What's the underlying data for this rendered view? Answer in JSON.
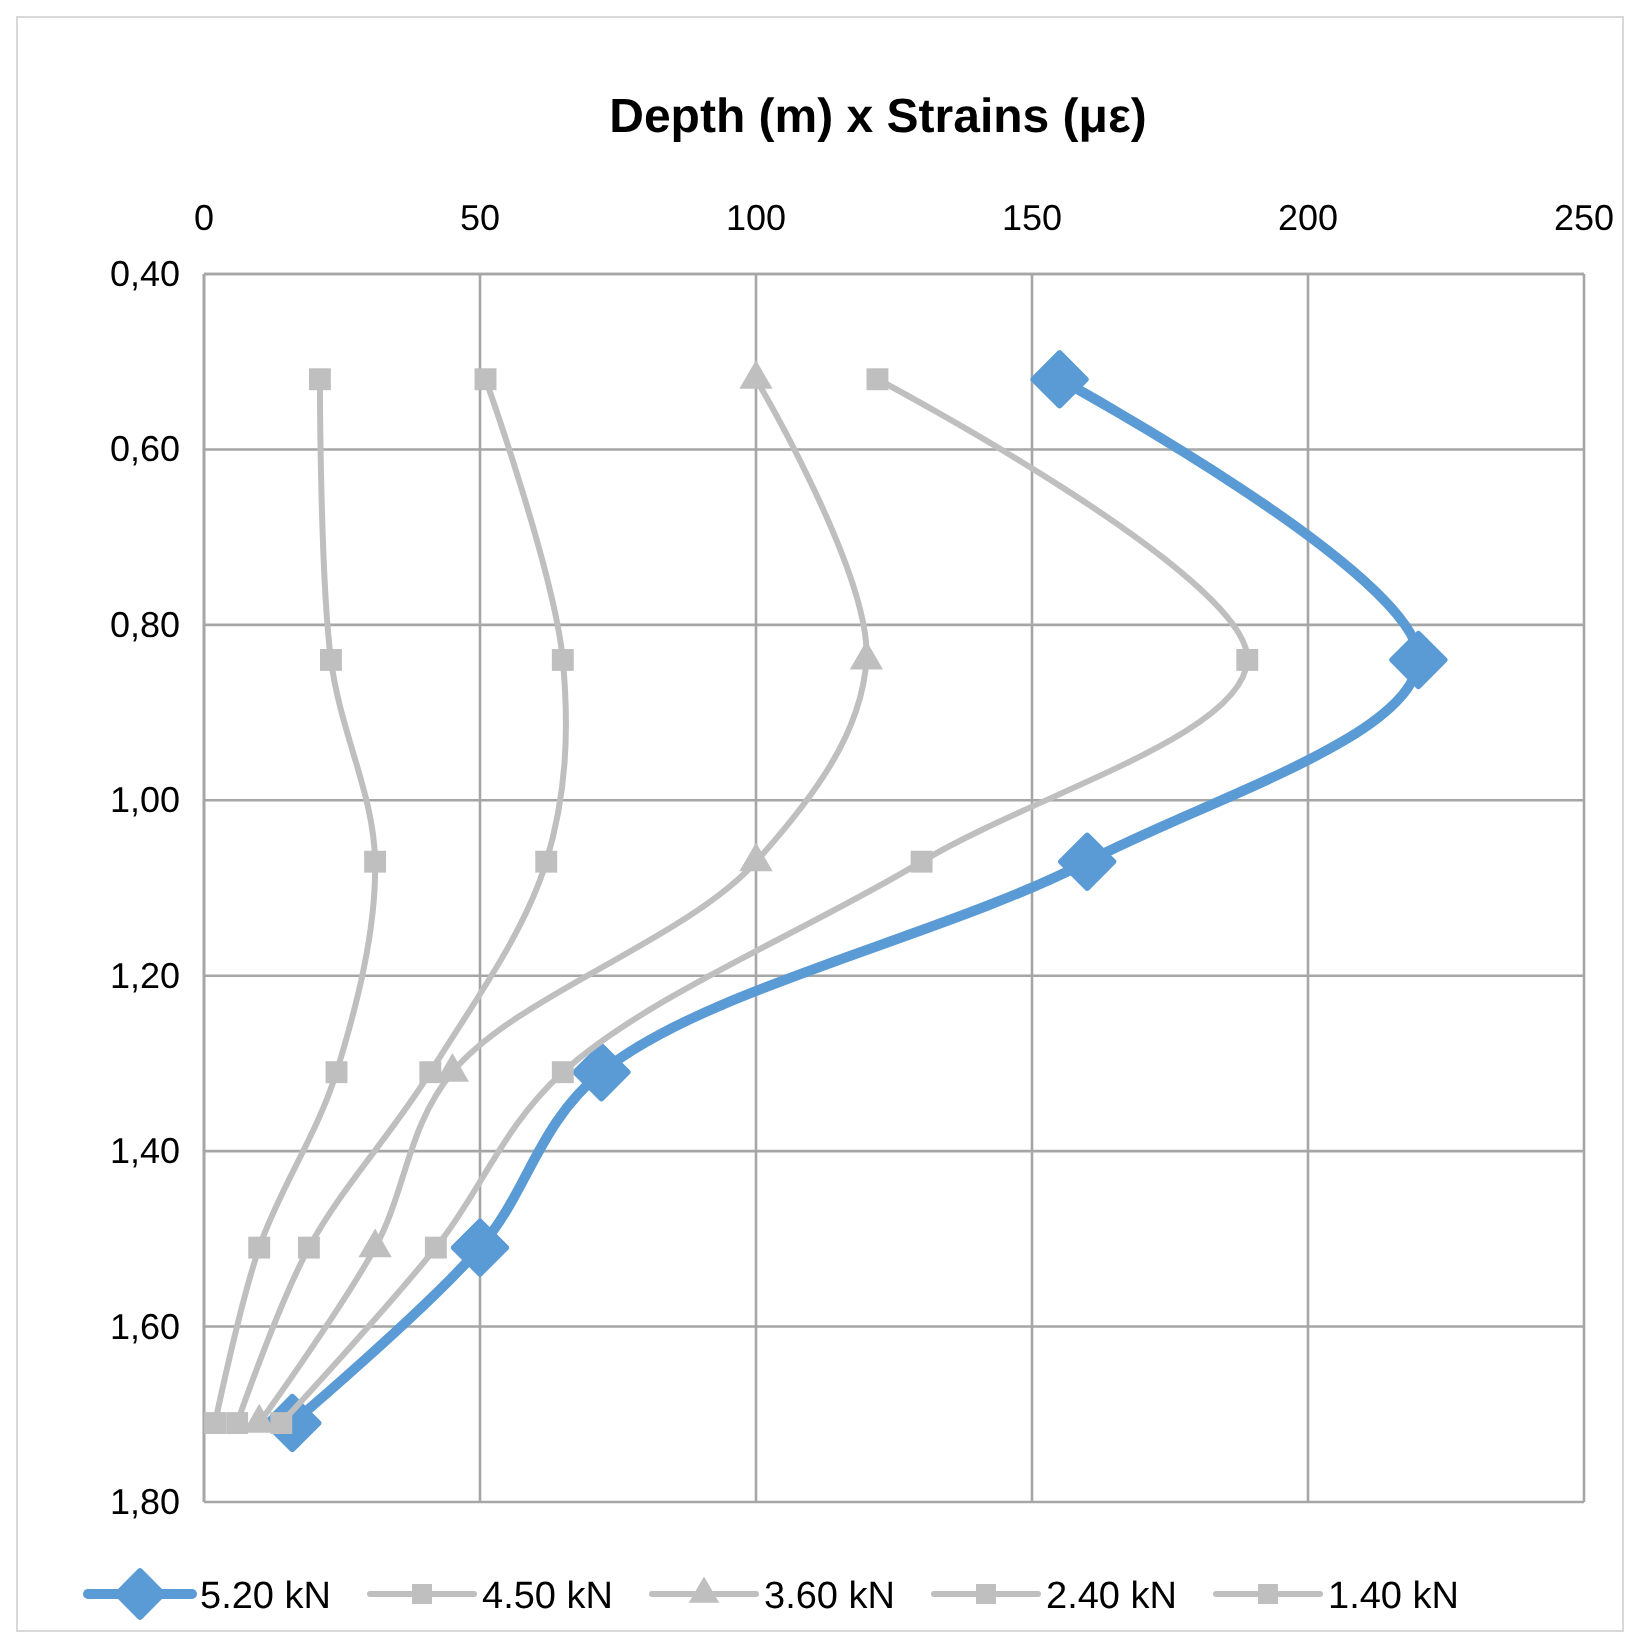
{
  "chart_data": {
    "type": "line",
    "title": "Depth (m) x Strains (με)",
    "xlim": [
      0,
      250
    ],
    "xticks": [
      0,
      50,
      100,
      150,
      200,
      250
    ],
    "ylim": [
      1.8,
      0.4
    ],
    "yticks": [
      {
        "value": 0.4,
        "label": "0,40"
      },
      {
        "value": 0.6,
        "label": "0,60"
      },
      {
        "value": 0.8,
        "label": "0,80"
      },
      {
        "value": 1.0,
        "label": "1,00"
      },
      {
        "value": 1.2,
        "label": "1,20"
      },
      {
        "value": 1.4,
        "label": "1,40"
      },
      {
        "value": 1.6,
        "label": "1,60"
      },
      {
        "value": 1.8,
        "label": "1,80"
      }
    ],
    "grid": true,
    "legend": "bottom",
    "line_style": "solid",
    "series": [
      {
        "name": "5.20 kN",
        "color": "#5b9bd5",
        "marker": "diamond",
        "x": [
          155,
          220,
          160,
          72,
          50,
          16
        ],
        "values": [
          0.52,
          0.84,
          1.07,
          1.31,
          1.51,
          1.71
        ]
      },
      {
        "name": "4.50 kN",
        "color": "#bfbfbf",
        "marker": "square",
        "x": [
          122,
          189,
          130,
          65,
          42,
          14
        ],
        "values": [
          0.52,
          0.84,
          1.07,
          1.31,
          1.51,
          1.71
        ]
      },
      {
        "name": "3.60 kN",
        "color": "#bfbfbf",
        "marker": "triangle",
        "x": [
          100,
          120,
          100,
          45,
          31,
          10
        ],
        "values": [
          0.52,
          0.84,
          1.07,
          1.31,
          1.51,
          1.71
        ]
      },
      {
        "name": "2.40 kN",
        "color": "#bfbfbf",
        "marker": "square",
        "x": [
          51,
          65,
          62,
          41,
          19,
          6
        ],
        "values": [
          0.52,
          0.84,
          1.07,
          1.31,
          1.51,
          1.71
        ]
      },
      {
        "name": "1.40 kN",
        "color": "#bfbfbf",
        "marker": "square",
        "x": [
          21,
          23,
          31,
          24,
          10,
          2
        ],
        "values": [
          0.52,
          0.84,
          1.07,
          1.31,
          1.51,
          1.71
        ]
      }
    ]
  }
}
